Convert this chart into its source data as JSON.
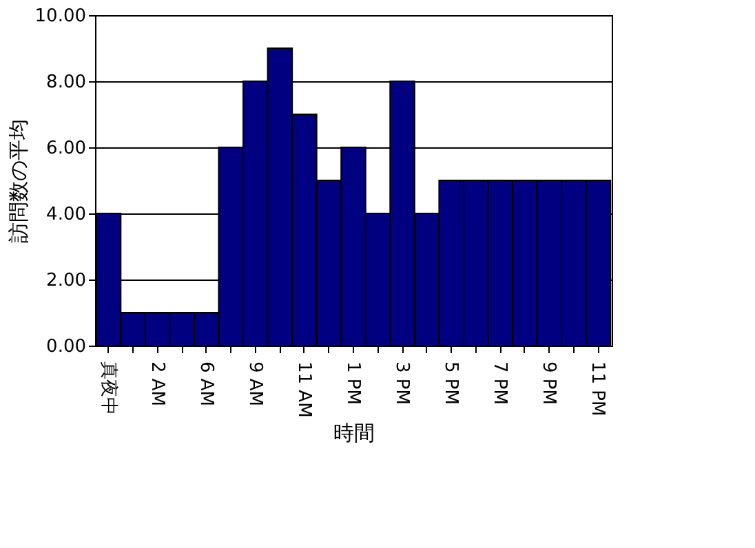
{
  "chart_data": {
    "type": "bar",
    "xlabel": "時間",
    "ylabel": "訪問数の平均",
    "categories": [
      "真夜中",
      null,
      "2 AM",
      null,
      "6 AM",
      null,
      "9 AM",
      null,
      "11 AM",
      null,
      "1 PM",
      null,
      "3 PM",
      null,
      "5 PM",
      null,
      "7 PM",
      null,
      "9 PM",
      null,
      "11 PM"
    ],
    "values": [
      4,
      1,
      1,
      1,
      1,
      6,
      8,
      9,
      7,
      5,
      6,
      4,
      8,
      4,
      5,
      5,
      5,
      5,
      5,
      5,
      5
    ],
    "color": "#000080",
    "ylim": [
      0,
      10
    ],
    "yticks": [
      {
        "value": 0,
        "label": "0.00"
      },
      {
        "value": 2,
        "label": "2.00"
      },
      {
        "value": 4,
        "label": "4.00"
      },
      {
        "value": 6,
        "label": "6.00"
      },
      {
        "value": 8,
        "label": "8.00"
      },
      {
        "value": 10,
        "label": "10.00"
      }
    ],
    "grid": "y"
  }
}
